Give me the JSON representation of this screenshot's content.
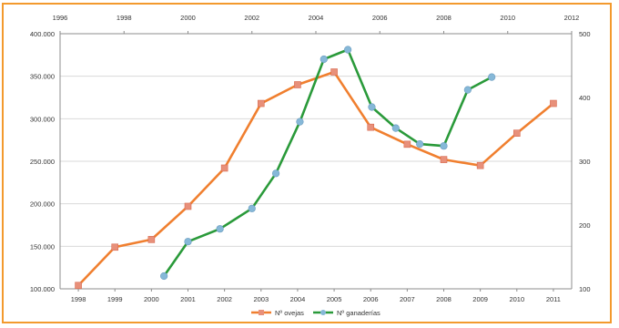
{
  "chart_data": {
    "type": "line",
    "title": "",
    "x": [
      1998,
      1999,
      2000,
      2001,
      2002,
      2003,
      2004,
      2005,
      2006,
      2007,
      2008,
      2009,
      2010,
      2011
    ],
    "x_tick_labels": [
      "1998",
      "1999",
      "2000",
      "2001",
      "2002",
      "2003",
      "2004",
      "2005",
      "2006",
      "2007",
      "2008",
      "2009",
      "2010",
      "2011"
    ],
    "top_x_tick_labels": [
      "1996",
      "1998",
      "2000",
      "2002",
      "2004",
      "2006",
      "2008",
      "2010",
      "2012"
    ],
    "y_left_tick_labels": [
      "100.000",
      "150.000",
      "200.000",
      "250.000",
      "300.000",
      "350.000",
      "400.000"
    ],
    "y_right_tick_labels": [
      "100",
      "200",
      "300",
      "400",
      "500"
    ],
    "ylim_left": [
      100000,
      400000
    ],
    "ylim_right": [
      100,
      500
    ],
    "xlim_top": [
      1996,
      2012
    ],
    "grid": "horizontal",
    "legend_position": "bottom",
    "series": [
      {
        "name": "Nº ovejas",
        "axis": "left",
        "color": "#f07f2f",
        "marker_color": "#e8907a",
        "values": [
          104000,
          149000,
          158000,
          197000,
          242000,
          318000,
          340000,
          355000,
          290000,
          270000,
          252000,
          245000,
          283000,
          318000
        ]
      },
      {
        "name": "Nº ganaderías",
        "axis": "right",
        "color": "#2a9a3a",
        "marker_color": "#86b8d8",
        "x": [
          1999.25,
          2000,
          2001,
          2002,
          2002.75,
          2003.5,
          2004.25,
          2005,
          2005.75,
          2006.5,
          2007.25,
          2008,
          2008.75,
          2009.5
        ],
        "values": [
          120,
          174,
          194,
          226,
          281,
          362,
          460,
          475,
          385,
          352,
          327,
          324,
          412,
          432
        ]
      }
    ]
  }
}
